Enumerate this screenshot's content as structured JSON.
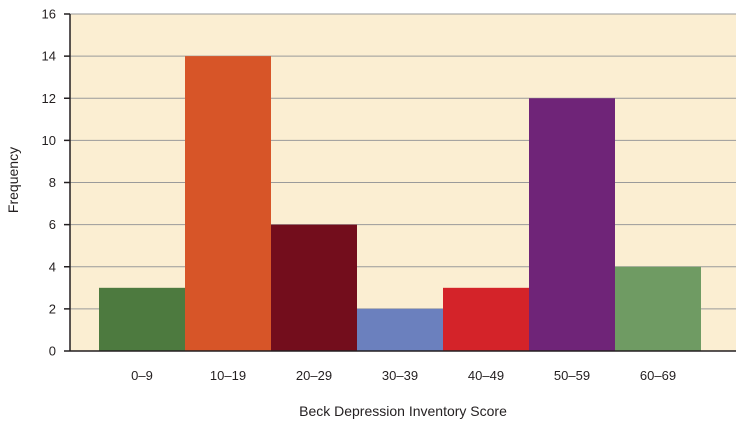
{
  "chart_data": {
    "type": "bar",
    "title": "",
    "xlabel": "Beck Depression Inventory Score",
    "ylabel": "Frequency",
    "categories": [
      "0–9",
      "10–19",
      "20–29",
      "30–39",
      "40–49",
      "50–59",
      "60–69"
    ],
    "values": [
      3,
      14,
      6,
      2,
      3,
      12,
      4
    ],
    "bar_colors": [
      "#4d7a3f",
      "#d75528",
      "#730d1c",
      "#6b80be",
      "#d42329",
      "#6f2478",
      "#6f9b63"
    ],
    "ylim": [
      0,
      16
    ],
    "yticks": [
      0,
      2,
      4,
      6,
      8,
      10,
      12,
      14,
      16
    ],
    "grid": true,
    "legend": "none",
    "plot_background": "#fbeed2",
    "grid_color": "#9a9a9a"
  }
}
